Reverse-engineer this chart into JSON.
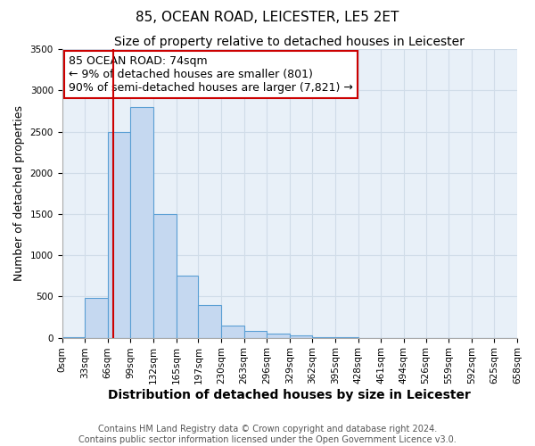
{
  "title": "85, OCEAN ROAD, LEICESTER, LE5 2ET",
  "subtitle": "Size of property relative to detached houses in Leicester",
  "xlabel": "Distribution of detached houses by size in Leicester",
  "ylabel": "Number of detached properties",
  "bin_edges": [
    0,
    33,
    66,
    99,
    132,
    165,
    197,
    230,
    263,
    296,
    329,
    362,
    395,
    428,
    461,
    494,
    526,
    559,
    592,
    625,
    658
  ],
  "bin_labels": [
    "0sqm",
    "33sqm",
    "66sqm",
    "99sqm",
    "132sqm",
    "165sqm",
    "197sqm",
    "230sqm",
    "263sqm",
    "296sqm",
    "329sqm",
    "362sqm",
    "395sqm",
    "428sqm",
    "461sqm",
    "494sqm",
    "526sqm",
    "559sqm",
    "592sqm",
    "625sqm",
    "658sqm"
  ],
  "bar_heights": [
    10,
    480,
    2500,
    2800,
    1500,
    750,
    400,
    150,
    80,
    50,
    30,
    10,
    5,
    0,
    0,
    0,
    0,
    0,
    0,
    0
  ],
  "bar_color": "#c5d8f0",
  "bar_edge_color": "#5a9fd4",
  "property_size": 74,
  "red_line_color": "#cc0000",
  "annotation_box_text_line1": "85 OCEAN ROAD: 74sqm",
  "annotation_box_text_line2": "← 9% of detached houses are smaller (801)",
  "annotation_box_text_line3": "90% of semi-detached houses are larger (7,821) →",
  "annotation_box_edge_color": "#cc0000",
  "annotation_box_face_color": "#ffffff",
  "ylim": [
    0,
    3500
  ],
  "xlim": [
    0,
    658
  ],
  "grid_color": "#d0dce8",
  "background_color": "#e8f0f8",
  "footer_line1": "Contains HM Land Registry data © Crown copyright and database right 2024.",
  "footer_line2": "Contains public sector information licensed under the Open Government Licence v3.0.",
  "title_fontsize": 11,
  "subtitle_fontsize": 10,
  "xlabel_fontsize": 10,
  "ylabel_fontsize": 9,
  "tick_fontsize": 7.5,
  "annotation_fontsize": 9,
  "footer_fontsize": 7
}
